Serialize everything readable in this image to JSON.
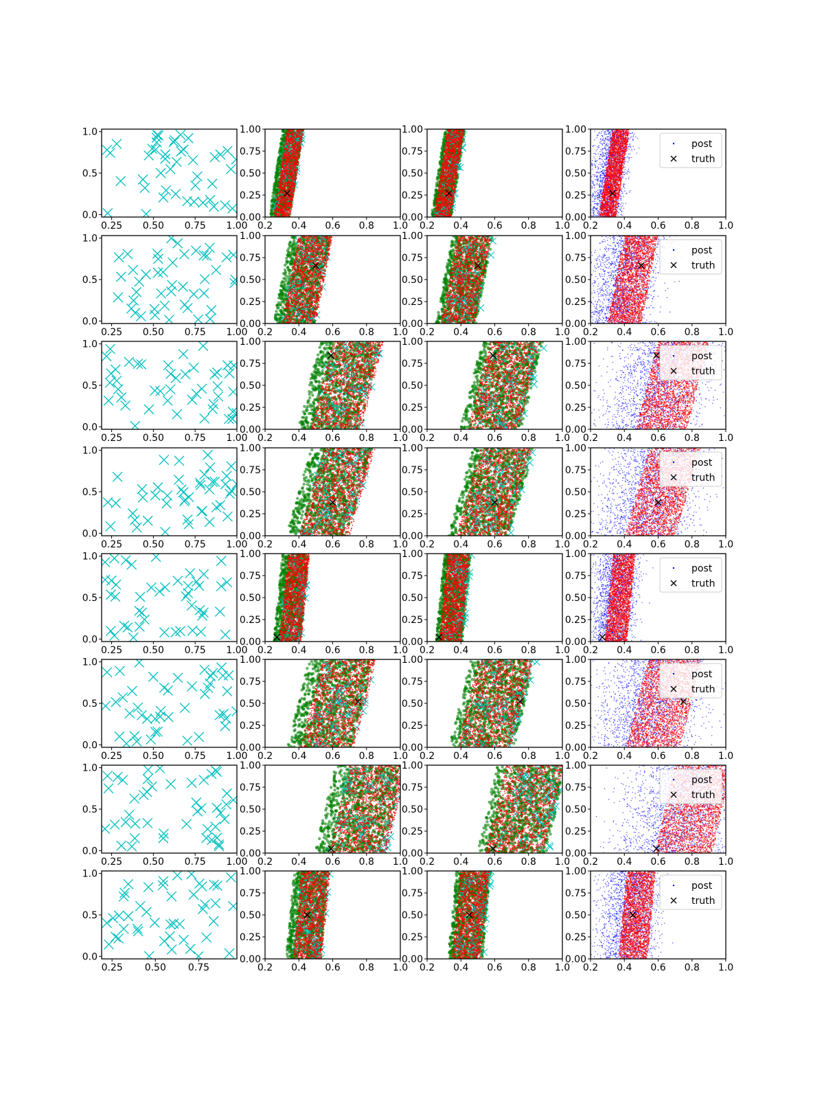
{
  "figure": {
    "layout": "8 rows x 4 columns of scatter subplots",
    "rows": 8,
    "cols": 4
  },
  "colors": {
    "observed_x": "#00bfbf",
    "post_blue": "#0000ff",
    "post_red": "#ff0000",
    "post_green": "#008000",
    "truth": "#000000",
    "axes": "#000000"
  },
  "legend": {
    "entries": [
      {
        "label": "post",
        "marker": "dot"
      },
      {
        "label": "truth",
        "marker": "x"
      }
    ],
    "placement": "upper-right of column 4"
  },
  "axes": {
    "col1_xticks_rows_1_7": [
      "0.25",
      "0.50",
      "0.75",
      "1.00"
    ],
    "col1_xticks_row_8": [
      "0.25",
      "0.50",
      "0.75"
    ],
    "col1_yticks": [
      "0.0",
      "0.5",
      "1.0"
    ],
    "col1_xlim": [
      0.19,
      1.0
    ],
    "col1_xlim_row_8": [
      0.19,
      0.97
    ],
    "col1_ylim": [
      -0.03,
      1.03
    ],
    "col2_4_xticks": [
      "0.2",
      "0.4",
      "0.6",
      "0.8",
      "1.0"
    ],
    "col2_4_yticks": [
      "0.00",
      "0.25",
      "0.50",
      "0.75",
      "1.00"
    ],
    "col2_4_xlim": [
      0.2,
      1.0
    ],
    "col2_4_ylim": [
      0.0,
      1.0
    ]
  },
  "chart_data": [
    {
      "row": 1,
      "type": "scatter",
      "column": 1,
      "content": "observed cyan x markers",
      "n_points": 45
    },
    {
      "row": 1,
      "type": "scatter",
      "columns": "2-4",
      "content": "posterior samples band",
      "band_center_x_at_y0": 0.3,
      "band_center_x_at_y1": 0.38,
      "band_width": 0.1,
      "truth": {
        "x": 0.33,
        "y": 0.27
      }
    },
    {
      "row": 2,
      "type": "scatter",
      "column": 1,
      "content": "observed cyan x markers",
      "n_points": 45
    },
    {
      "row": 2,
      "type": "scatter",
      "columns": "2-4",
      "content": "posterior samples band",
      "band_center_x_at_y0": 0.4,
      "band_center_x_at_y1": 0.5,
      "band_width": 0.2,
      "truth": {
        "x": 0.5,
        "y": 0.66
      }
    },
    {
      "row": 3,
      "type": "scatter",
      "column": 1,
      "content": "observed cyan x markers",
      "n_points": 45
    },
    {
      "row": 3,
      "type": "scatter",
      "columns": "2-4",
      "content": "posterior samples band",
      "band_center_x_at_y0": 0.62,
      "band_center_x_at_y1": 0.75,
      "band_width": 0.3,
      "truth": {
        "x": 0.59,
        "y": 0.84
      }
    },
    {
      "row": 4,
      "type": "scatter",
      "column": 1,
      "content": "observed cyan x markers",
      "n_points": 45
    },
    {
      "row": 4,
      "type": "scatter",
      "columns": "2-4",
      "content": "posterior samples band",
      "band_center_x_at_y0": 0.55,
      "band_center_x_at_y1": 0.7,
      "band_width": 0.3,
      "truth": {
        "x": 0.6,
        "y": 0.38
      }
    },
    {
      "row": 5,
      "type": "scatter",
      "column": 1,
      "content": "observed cyan x markers",
      "n_points": 45
    },
    {
      "row": 5,
      "type": "scatter",
      "columns": "2-4",
      "content": "posterior samples band",
      "band_center_x_at_y0": 0.35,
      "band_center_x_at_y1": 0.4,
      "band_width": 0.13,
      "truth": {
        "x": 0.27,
        "y": 0.05
      }
    },
    {
      "row": 6,
      "type": "scatter",
      "column": 1,
      "content": "observed cyan x markers",
      "n_points": 45
    },
    {
      "row": 6,
      "type": "scatter",
      "columns": "2-4",
      "content": "posterior samples band",
      "band_center_x_at_y0": 0.57,
      "band_center_x_at_y1": 0.7,
      "band_width": 0.32,
      "truth": {
        "x": 0.75,
        "y": 0.52
      }
    },
    {
      "row": 7,
      "type": "scatter",
      "column": 1,
      "content": "observed cyan x markers",
      "n_points": 45
    },
    {
      "row": 7,
      "type": "scatter",
      "columns": "2-4",
      "content": "posterior samples band",
      "band_center_x_at_y0": 0.75,
      "band_center_x_at_y1": 0.87,
      "band_width": 0.34,
      "truth": {
        "x": 0.59,
        "y": 0.05
      }
    },
    {
      "row": 8,
      "type": "scatter",
      "column": 1,
      "content": "observed cyan x markers",
      "n_points": 45
    },
    {
      "row": 8,
      "type": "scatter",
      "columns": "2-4",
      "content": "posterior samples band",
      "band_center_x_at_y0": 0.45,
      "band_center_x_at_y1": 0.5,
      "band_width": 0.17,
      "truth": {
        "x": 0.45,
        "y": 0.5
      }
    }
  ]
}
